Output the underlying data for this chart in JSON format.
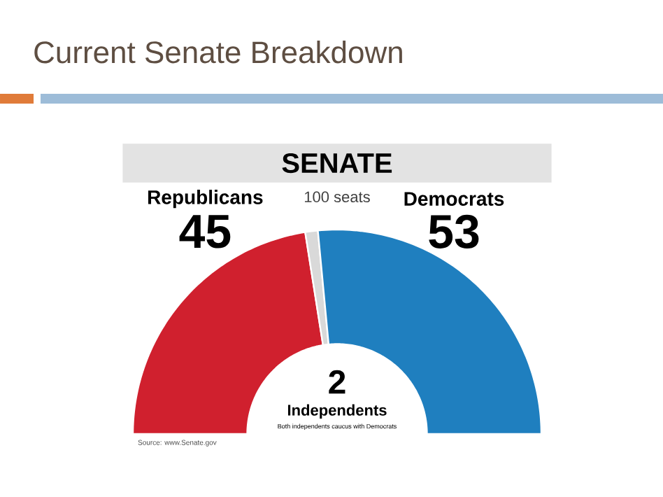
{
  "chart_data": {
    "type": "donut",
    "title": "Current Senate Breakdown",
    "subtitle": "SENATE",
    "categories": [
      "Republicans",
      "Independents",
      "Democrats"
    ],
    "values": [
      45,
      2,
      53
    ],
    "colors": [
      "#d0202e",
      "#d9d9d9",
      "#1f7fbf"
    ],
    "data_labels": true,
    "annotations": [
      "100 seats",
      "Both independents caucus with Democrats",
      "Source: www.Senate.gov"
    ]
  }
}
